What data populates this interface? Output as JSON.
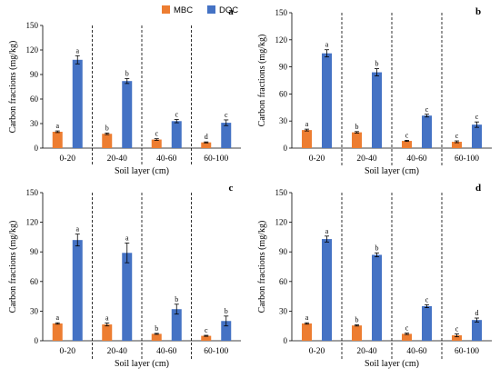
{
  "colors": {
    "MBC": "#ED7D31",
    "DOC": "#4472C4"
  },
  "legend": {
    "items": [
      "MBC",
      "DOC"
    ]
  },
  "chart_data": [
    {
      "type": "bar",
      "panel_label": "a",
      "categories": [
        "0-20",
        "20-40",
        "40-60",
        "60-100"
      ],
      "xlabel": "Soil layer (cm)",
      "ylabel": "Carbon fractions (mg/kg)",
      "ylim": [
        0,
        150
      ],
      "yticks": [
        0,
        30,
        60,
        90,
        120,
        150
      ],
      "legend": "top",
      "series": [
        {
          "name": "MBC",
          "values": [
            20,
            17.5,
            10.5,
            7
          ],
          "errors": [
            1,
            1,
            1,
            0.6
          ],
          "sig": [
            "a",
            "b",
            "c",
            "d"
          ]
        },
        {
          "name": "DOC",
          "values": [
            108,
            82,
            33,
            31
          ],
          "errors": [
            5,
            3,
            2,
            3.5
          ],
          "sig": [
            "a",
            "b",
            "c",
            "c"
          ]
        }
      ]
    },
    {
      "type": "bar",
      "panel_label": "b",
      "categories": [
        "0-20",
        "20-40",
        "40-60",
        "60-100"
      ],
      "xlabel": "Soil layer (cm)",
      "ylabel": "Carbon fractions (mg/kg)",
      "ylim": [
        0,
        150
      ],
      "yticks": [
        0,
        30,
        60,
        90,
        120,
        150
      ],
      "series": [
        {
          "name": "MBC",
          "values": [
            20,
            17.5,
            8,
            7
          ],
          "errors": [
            1,
            0.8,
            0.6,
            1
          ],
          "sig": [
            "a",
            "b",
            "c",
            "c"
          ]
        },
        {
          "name": "DOC",
          "values": [
            105,
            84,
            36,
            26
          ],
          "errors": [
            4,
            4,
            1.5,
            3
          ],
          "sig": [
            "a",
            "b",
            "c",
            "c"
          ]
        }
      ]
    },
    {
      "type": "bar",
      "panel_label": "c",
      "categories": [
        "0-20",
        "20-40",
        "40-60",
        "60-100"
      ],
      "xlabel": "Soil layer (cm)",
      "ylabel": "Carbon fractions (mg/kg)",
      "ylim": [
        0,
        150
      ],
      "yticks": [
        0,
        30,
        60,
        90,
        120,
        150
      ],
      "series": [
        {
          "name": "MBC",
          "values": [
            17.5,
            16.5,
            7,
            5
          ],
          "errors": [
            0.7,
            1.5,
            0.5,
            0.5
          ],
          "sig": [
            "a",
            "a",
            "b",
            "c"
          ]
        },
        {
          "name": "DOC",
          "values": [
            102,
            89,
            32,
            20
          ],
          "errors": [
            6,
            10,
            5,
            5
          ],
          "sig": [
            "a",
            "a",
            "b",
            "b"
          ]
        }
      ]
    },
    {
      "type": "bar",
      "panel_label": "d",
      "categories": [
        "0-20",
        "20-40",
        "40-60",
        "60-100"
      ],
      "xlabel": "Soil layer (cm)",
      "ylabel": "Carbon fractions (mg/kg)",
      "ylim": [
        0,
        150
      ],
      "yticks": [
        0,
        30,
        60,
        90,
        120,
        150
      ],
      "series": [
        {
          "name": "MBC",
          "values": [
            17.5,
            15.5,
            7,
            5.5
          ],
          "errors": [
            0.7,
            0.6,
            0.7,
            1.5
          ],
          "sig": [
            "a",
            "b",
            "c",
            "c"
          ]
        },
        {
          "name": "DOC",
          "values": [
            103,
            87,
            35,
            21
          ],
          "errors": [
            3,
            2,
            1.5,
            2
          ],
          "sig": [
            "a",
            "b",
            "c",
            "d"
          ]
        }
      ]
    }
  ]
}
